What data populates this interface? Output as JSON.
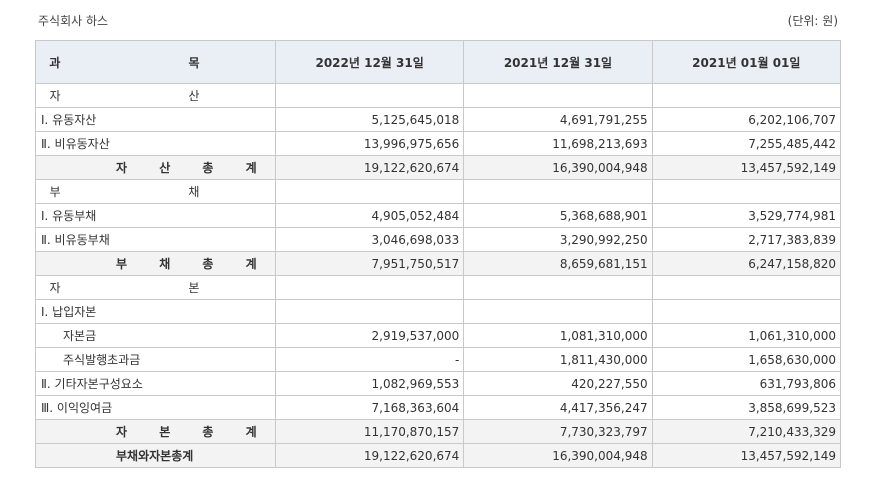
{
  "company": "주식회사 하스",
  "unit": "(단위: 원)",
  "header": {
    "subject": "과 목",
    "col1": "2022년 12월 31일",
    "col2": "2021년 12월 31일",
    "col3": "2021년 01월 01일"
  },
  "rows": [
    {
      "label": "자 산",
      "kind": "section",
      "v1": "",
      "v2": "",
      "v3": ""
    },
    {
      "label": "Ⅰ. 유동자산",
      "kind": "item",
      "v1": "5,125,645,018",
      "v2": "4,691,791,255",
      "v3": "6,202,106,707"
    },
    {
      "label": "Ⅱ. 비유동자산",
      "kind": "item",
      "v1": "13,996,975,656",
      "v2": "11,698,213,693",
      "v3": "7,255,485,442"
    },
    {
      "label": "자 산 총 계",
      "kind": "total",
      "v1": "19,122,620,674",
      "v2": "16,390,004,948",
      "v3": "13,457,592,149"
    },
    {
      "label": "부 채",
      "kind": "section",
      "v1": "",
      "v2": "",
      "v3": ""
    },
    {
      "label": "Ⅰ. 유동부채",
      "kind": "item",
      "v1": "4,905,052,484",
      "v2": "5,368,688,901",
      "v3": "3,529,774,981"
    },
    {
      "label": "Ⅱ. 비유동부채",
      "kind": "item",
      "v1": "3,046,698,033",
      "v2": "3,290,992,250",
      "v3": "2,717,383,839"
    },
    {
      "label": "부 채 총 계",
      "kind": "total",
      "v1": "7,951,750,517",
      "v2": "8,659,681,151",
      "v3": "6,247,158,820"
    },
    {
      "label": "자 본",
      "kind": "section",
      "v1": "",
      "v2": "",
      "v3": ""
    },
    {
      "label": "Ⅰ. 납입자본",
      "kind": "item",
      "v1": "",
      "v2": "",
      "v3": ""
    },
    {
      "label": "자본금",
      "kind": "sub",
      "v1": "2,919,537,000",
      "v2": "1,081,310,000",
      "v3": "1,061,310,000"
    },
    {
      "label": "주식발행초과금",
      "kind": "sub",
      "v1": "-",
      "v2": "1,811,430,000",
      "v3": "1,658,630,000"
    },
    {
      "label": "Ⅱ. 기타자본구성요소",
      "kind": "item",
      "v1": "1,082,969,553",
      "v2": "420,227,550",
      "v3": "631,793,806"
    },
    {
      "label": "Ⅲ. 이익잉여금",
      "kind": "item",
      "v1": "7,168,363,604",
      "v2": "4,417,356,247",
      "v3": "3,858,699,523"
    },
    {
      "label": "자 본 총 계",
      "kind": "total",
      "v1": "11,170,870,157",
      "v2": "7,730,323,797",
      "v3": "7,210,433,329"
    },
    {
      "label": "부채와자본총계",
      "kind": "total",
      "v1": "19,122,620,674",
      "v2": "16,390,004,948",
      "v3": "13,457,592,149"
    }
  ]
}
